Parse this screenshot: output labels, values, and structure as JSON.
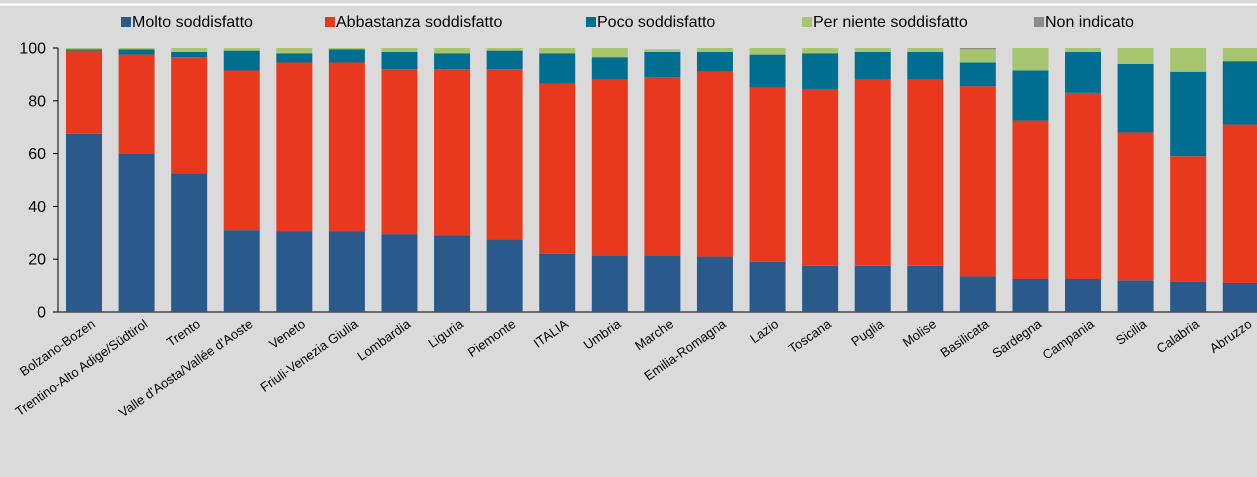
{
  "chart_data": {
    "type": "bar",
    "stacked": true,
    "title": "",
    "xlabel": "",
    "ylabel": "",
    "ylim": [
      0,
      100
    ],
    "yticks": [
      "0",
      "20",
      "40",
      "60",
      "80",
      "100"
    ],
    "grid": false,
    "legend_position": "top",
    "categories": [
      "Bolzano-Bozen",
      "Trentino-Alto Adige/Südtirol",
      "Trento",
      "Valle d'Aosta/Vallée d'Aoste",
      "Veneto",
      "Friuli-Venezia Giulia",
      "Lombardia",
      "Liguria",
      "Piemonte",
      "ITALIA",
      "Umbria",
      "Marche",
      "Emilia-Romagna",
      "Lazio",
      "Toscana",
      "Puglia",
      "Molise",
      "Basilicata",
      "Sardegna",
      "Campania",
      "Sicilia",
      "Calabria",
      "Abruzzo"
    ],
    "series": [
      {
        "name": "Molto soddisfatto",
        "color": "#2a5a8c",
        "values": [
          67.5,
          60,
          52.5,
          31,
          30.5,
          30.5,
          29.5,
          29,
          27.5,
          22,
          21.5,
          21.5,
          21,
          19,
          17.5,
          17.5,
          17.5,
          13.5,
          12.5,
          12.5,
          12,
          11.5,
          11
        ]
      },
      {
        "name": "Abbastanza soddisfatto",
        "color": "#e8391e",
        "values": [
          31.5,
          37.5,
          44,
          60.5,
          64,
          64,
          62.5,
          63,
          64.5,
          64.5,
          66.5,
          67.5,
          70,
          66,
          67,
          70.5,
          70.5,
          72,
          60,
          70.5,
          56,
          47.5,
          60
        ]
      },
      {
        "name": "Poco soddisfatto",
        "color": "#006e91",
        "values": [
          0.5,
          2,
          2,
          7.5,
          3.5,
          5,
          6.5,
          6,
          7,
          11.5,
          8.5,
          9.5,
          7.5,
          12.5,
          13.5,
          10.5,
          10.5,
          9,
          19,
          15.5,
          26,
          32,
          24
        ]
      },
      {
        "name": "Per niente soddisfatto",
        "color": "#a7c56e",
        "values": [
          0.5,
          0.5,
          1.5,
          1,
          2,
          0.5,
          1.5,
          2,
          1,
          2,
          3.5,
          1,
          1.5,
          2.5,
          2,
          1.5,
          1.5,
          5,
          8.5,
          1.5,
          6,
          9,
          5
        ]
      },
      {
        "name": "Non indicato",
        "color": "#8c8c8c",
        "values": [
          0,
          0,
          0,
          0,
          0,
          0,
          0,
          0,
          0,
          0,
          0,
          0,
          0,
          0,
          0,
          0,
          0,
          0.5,
          0,
          0,
          0,
          0,
          0
        ]
      }
    ]
  }
}
